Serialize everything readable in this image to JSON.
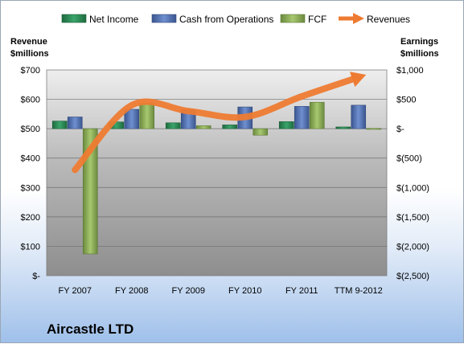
{
  "chart_data": {
    "type": "bar",
    "title": "",
    "company": "Aircastle LTD",
    "categories": [
      "FY 2007",
      "FY 2008",
      "FY 2009",
      "FY 2010",
      "FY 2011",
      "TTM 9-2012"
    ],
    "left_axis": {
      "title_line1": "Revenue",
      "title_line2": "$millions",
      "ylim": [
        0,
        700
      ],
      "ticks": [
        0,
        100,
        200,
        300,
        400,
        500,
        600,
        700
      ],
      "tick_labels": [
        "$-",
        "$100",
        "$200",
        "$300",
        "$400",
        "$500",
        "$600",
        "$700"
      ]
    },
    "right_axis": {
      "title_line1": "Earnings",
      "title_line2": "$millions",
      "ylim": [
        -2500,
        1000
      ],
      "ticks": [
        -2500,
        -2000,
        -1500,
        -1000,
        -500,
        0,
        500,
        1000
      ],
      "tick_labels": [
        "$(2,500)",
        "$(2,000)",
        "$(1,500)",
        "$(1,000)",
        "$(500)",
        "$-",
        "$500",
        "$1,000"
      ]
    },
    "series": [
      {
        "name": "Net Income",
        "axis": "right",
        "kind": "bar",
        "color": "#2e8b57",
        "values": [
          130,
          115,
          100,
          65,
          120,
          30
        ]
      },
      {
        "name": "Cash from Operations",
        "axis": "right",
        "kind": "bar",
        "color": "#4f6fae",
        "values": [
          200,
          330,
          320,
          370,
          380,
          400
        ]
      },
      {
        "name": "FCF",
        "axis": "right",
        "kind": "bar",
        "color": "#8db05a",
        "values": [
          -2130,
          430,
          50,
          -110,
          450,
          5
        ]
      },
      {
        "name": "Revenues",
        "axis": "left",
        "kind": "line-arrow",
        "color": "#ee7b32",
        "values": [
          360,
          580,
          560,
          540,
          610,
          675
        ]
      }
    ],
    "legend_position": "top",
    "grid": true
  }
}
